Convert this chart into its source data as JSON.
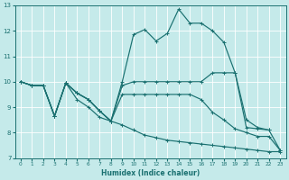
{
  "xlabel": "Humidex (Indice chaleur)",
  "background_color": "#c5eaea",
  "line_color": "#1a7070",
  "grid_color": "#ffffff",
  "xlim": [
    -0.5,
    23.5
  ],
  "ylim": [
    7,
    13
  ],
  "yticks": [
    7,
    8,
    9,
    10,
    11,
    12,
    13
  ],
  "xticks": [
    0,
    1,
    2,
    3,
    4,
    5,
    6,
    7,
    8,
    9,
    10,
    11,
    12,
    13,
    14,
    15,
    16,
    17,
    18,
    19,
    20,
    21,
    22,
    23
  ],
  "line1_x": [
    0,
    1,
    2,
    3,
    4,
    5,
    6,
    7,
    8,
    9,
    10,
    11,
    12,
    13,
    14,
    15,
    16,
    17,
    18,
    19,
    20,
    21,
    22
  ],
  "line1_y": [
    10.0,
    9.85,
    9.85,
    8.65,
    9.95,
    9.55,
    9.3,
    8.85,
    8.45,
    10.0,
    11.85,
    12.05,
    11.6,
    11.9,
    12.85,
    12.3,
    12.3,
    12.0,
    11.55,
    10.35,
    8.2,
    8.15,
    8.1
  ],
  "line2_x": [
    0,
    1,
    2,
    3,
    4,
    5,
    6,
    7,
    8,
    9,
    10,
    11,
    12,
    13,
    14,
    15,
    16,
    17,
    18,
    19,
    20,
    21,
    22,
    23
  ],
  "line2_y": [
    10.0,
    9.85,
    9.85,
    8.65,
    9.95,
    9.55,
    9.3,
    8.85,
    8.45,
    9.85,
    10.0,
    10.0,
    10.0,
    10.0,
    10.0,
    10.0,
    10.0,
    10.35,
    10.35,
    10.35,
    8.5,
    8.2,
    8.1,
    7.3
  ],
  "line3_x": [
    0,
    1,
    2,
    3,
    4,
    5,
    6,
    7,
    8,
    9,
    10,
    11,
    12,
    13,
    14,
    15,
    16,
    17,
    18,
    19,
    20,
    21,
    22,
    23
  ],
  "line3_y": [
    10.0,
    9.85,
    9.85,
    8.65,
    9.95,
    9.55,
    9.3,
    8.85,
    8.45,
    9.5,
    9.5,
    9.5,
    9.5,
    9.5,
    9.5,
    9.5,
    9.3,
    8.8,
    8.5,
    8.15,
    8.0,
    7.85,
    7.85,
    7.3
  ],
  "line4_x": [
    0,
    1,
    2,
    3,
    4,
    5,
    6,
    7,
    8,
    9,
    10,
    11,
    12,
    13,
    14,
    15,
    16,
    17,
    18,
    19,
    20,
    21,
    22,
    23
  ],
  "line4_y": [
    10.0,
    9.85,
    9.85,
    8.65,
    9.95,
    9.3,
    9.0,
    8.6,
    8.45,
    8.3,
    8.1,
    7.9,
    7.8,
    7.7,
    7.65,
    7.6,
    7.55,
    7.5,
    7.45,
    7.4,
    7.35,
    7.3,
    7.25,
    7.25
  ]
}
